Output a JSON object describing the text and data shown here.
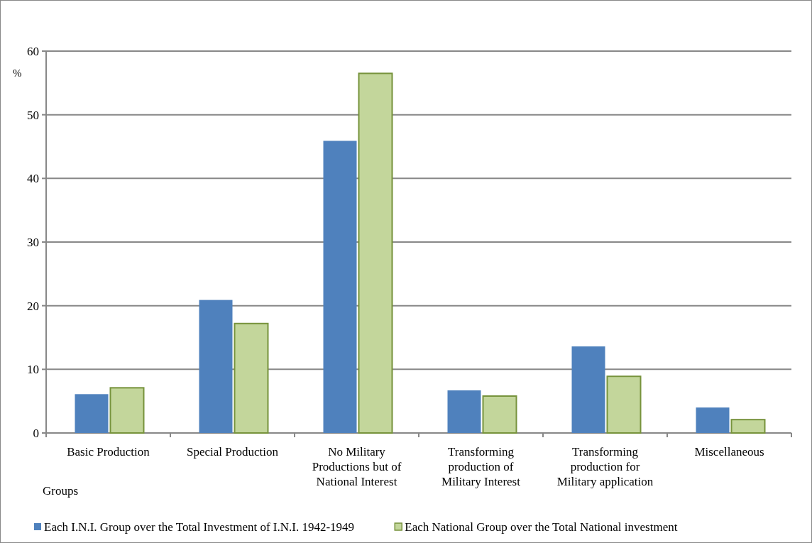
{
  "chart_data": {
    "type": "bar",
    "ylabel": "%",
    "xlabel": "Groups",
    "categories": [
      "Basic Production",
      "Special Production",
      "No Military Productions but of National Interest",
      "Transforming production of Military Interest",
      "Transforming production for Military application",
      "Miscellaneous"
    ],
    "series": [
      {
        "name": "Each I.N.I. Group over the Total Investment of I.N.I. 1942-1949",
        "color": "#4f81bd",
        "values": [
          6.1,
          20.9,
          45.9,
          6.7,
          13.6,
          4.0
        ]
      },
      {
        "name": "Each National Group over the Total National investment",
        "color": "#c3d69b",
        "values": [
          7.1,
          17.2,
          56.5,
          5.8,
          8.9,
          2.1
        ]
      }
    ],
    "ylim": [
      0,
      60
    ],
    "yticks": [
      0,
      10,
      20,
      30,
      40,
      50,
      60
    ],
    "grid": "y",
    "legend": "bottom"
  }
}
